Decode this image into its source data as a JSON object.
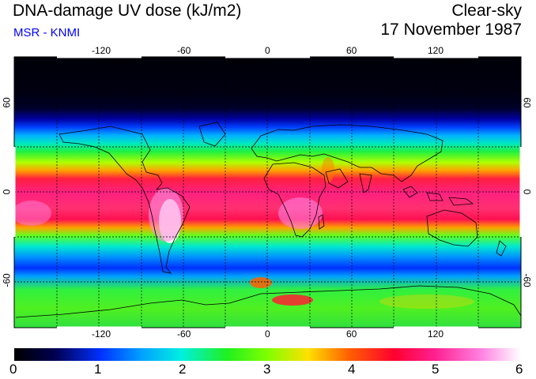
{
  "header": {
    "title": "DNA-damage UV dose (kJ/m2)",
    "subtitle": "MSR - KNMI",
    "sky_condition": "Clear-sky",
    "date": "17 November 1987",
    "subtitle_color": "#0000ff"
  },
  "map": {
    "lon_ticks": [
      "-120",
      "-60",
      "0",
      "60",
      "120"
    ],
    "lat_ticks_left": [
      "60",
      "0",
      "-60"
    ],
    "lat_ticks_right": [
      "60",
      "0",
      "-60"
    ],
    "projection": "equirectangular",
    "graticule": "dashed"
  },
  "colorbar": {
    "labels": [
      "0",
      "1",
      "2",
      "3",
      "4",
      "5",
      "6"
    ],
    "min": 0,
    "max": 6
  }
}
